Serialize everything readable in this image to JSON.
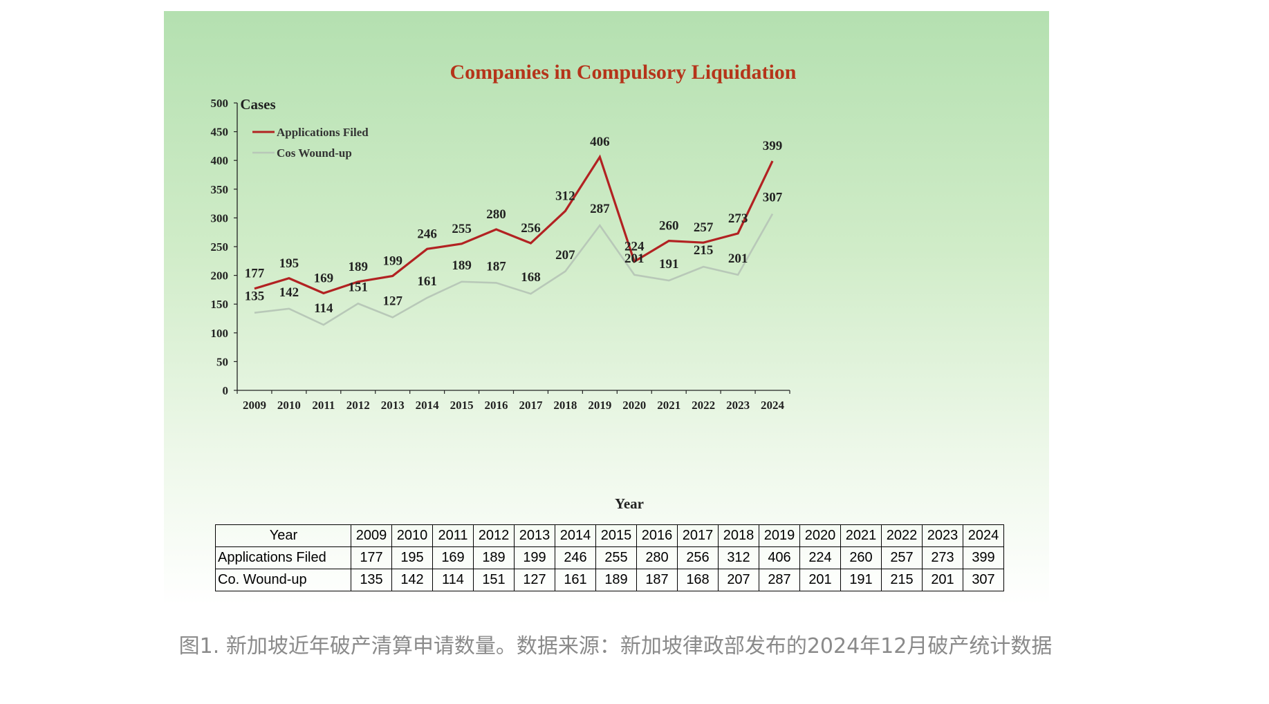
{
  "chart_data": {
    "type": "line",
    "title": "Companies in Compulsory Liquidation",
    "ylabel": "Cases",
    "xlabel": "Year",
    "ylim": [
      0,
      500
    ],
    "yticks": [
      0,
      50,
      100,
      150,
      200,
      250,
      300,
      350,
      400,
      450,
      500
    ],
    "categories": [
      "2009",
      "2010",
      "2011",
      "2012",
      "2013",
      "2014",
      "2015",
      "2016",
      "2017",
      "2018",
      "2019",
      "2020",
      "2021",
      "2022",
      "2023",
      "2024"
    ],
    "legend_position": "top-left",
    "grid": false,
    "series": [
      {
        "name": "Applications Filed",
        "color": "#b22222",
        "values": [
          177,
          195,
          169,
          189,
          199,
          246,
          255,
          280,
          256,
          312,
          406,
          224,
          260,
          257,
          273,
          399
        ]
      },
      {
        "name": "Cos Wound-up",
        "color": "#b8c8b8",
        "values": [
          135,
          142,
          114,
          151,
          127,
          161,
          189,
          187,
          168,
          207,
          287,
          201,
          191,
          215,
          201,
          307
        ]
      }
    ]
  },
  "table": {
    "header_label": "Year",
    "rows": [
      {
        "label": "Applications Filed"
      },
      {
        "label": "Co. Wound-up"
      }
    ]
  },
  "caption": "图1. 新加坡近年破产清算申请数量。数据来源：新加坡律政部发布的2024年12月破产统计数据",
  "colors": {
    "title": "#b5341a",
    "caption": "#8a8a8a"
  }
}
